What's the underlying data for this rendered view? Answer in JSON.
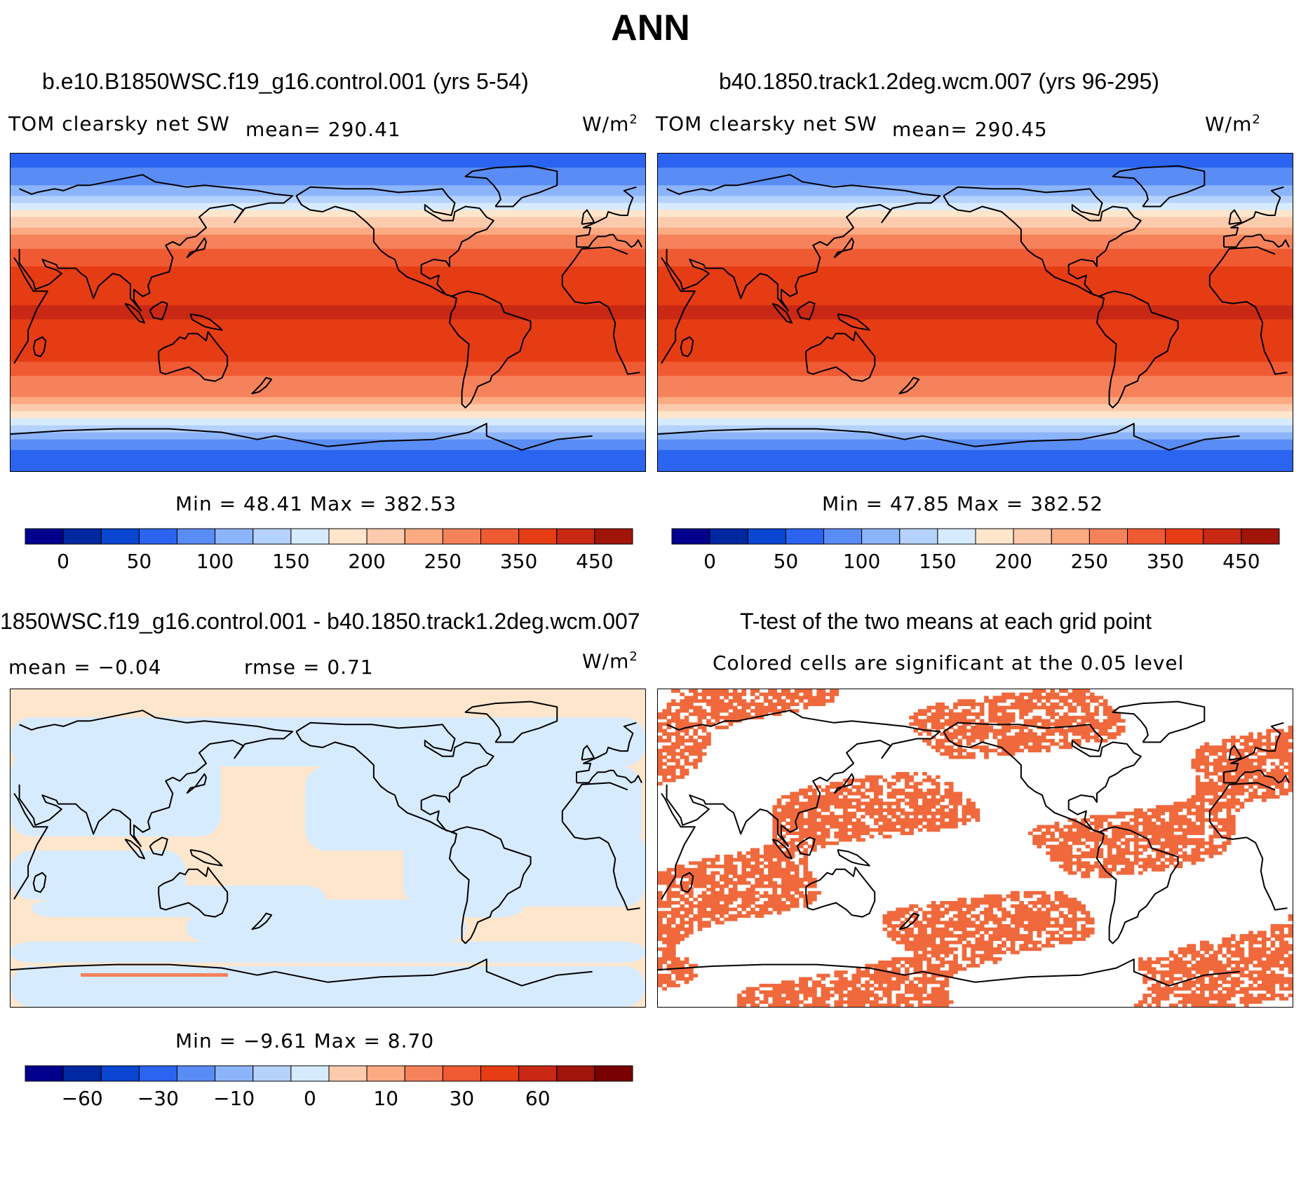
{
  "figure_title": "ANN",
  "colors": {
    "scale": [
      "#00008c",
      "#0028a0",
      "#0a46d2",
      "#2a64f0",
      "#5a8cf5",
      "#8cb4fa",
      "#b4d2fc",
      "#d7ebfe",
      "#fee6cc",
      "#fccaad",
      "#fcaa82",
      "#f5825a",
      "#f05a32",
      "#e63c14",
      "#c82814",
      "#a0140a",
      "#780000"
    ],
    "continent_line": "#000000",
    "significant": "#f0693c"
  },
  "panels": {
    "p1": {
      "title": "b.e10.B1850WSC.f19_g16.control.001 (yrs 5-54)",
      "variable": "TOM clearsky net SW",
      "mean_text": "mean= 290.41",
      "units": "W/m",
      "units_sup": "2",
      "minmax_text": "Min =   48.41 Max = 382.53"
    },
    "p2": {
      "title": "b40.1850.track1.2deg.wcm.007 (yrs 96-295)",
      "variable": "TOM clearsky net SW",
      "mean_text": "mean= 290.45",
      "units": "W/m",
      "units_sup": "2",
      "minmax_text": "Min =   47.85 Max = 382.52"
    },
    "p3": {
      "title": "1850WSC.f19_g16.control.001 - b40.1850.track1.2deg.wcm.007",
      "mean_text": "mean =   −0.04",
      "rmse_text": "rmse =    0.71",
      "units": "W/m",
      "units_sup": "2",
      "minmax_text": "Min =  −9.61 Max =    8.70"
    },
    "p4": {
      "title": "T-test of the two means at each grid point",
      "subtitle": "Colored cells are significant at the 0.05 level"
    }
  },
  "chart_data": [
    {
      "type": "heatmap",
      "title": "b.e10.B1850WSC.f19_g16.control.001 (yrs 5-54)",
      "variable": "TOM clearsky net SW",
      "units": "W/m^2",
      "mean": 290.41,
      "min": 48.41,
      "max": 382.53,
      "lat_range": [
        -90,
        90
      ],
      "lon_range": [
        30,
        390
      ],
      "colorbar_levels": [
        0,
        25,
        50,
        75,
        100,
        125,
        150,
        175,
        200,
        225,
        250,
        300,
        325,
        350,
        400,
        450
      ],
      "colorbar_ticks": [
        "0",
        "50",
        "100",
        "150",
        "200",
        "250",
        "350",
        "450"
      ],
      "zonal_profile": [
        [
          -90,
          60
        ],
        [
          -75,
          80
        ],
        [
          -65,
          140
        ],
        [
          -55,
          210
        ],
        [
          -45,
          265
        ],
        [
          -35,
          305
        ],
        [
          -25,
          330
        ],
        [
          -15,
          345
        ],
        [
          0,
          352
        ],
        [
          15,
          345
        ],
        [
          25,
          330
        ],
        [
          35,
          300
        ],
        [
          45,
          245
        ],
        [
          55,
          190
        ],
        [
          65,
          130
        ],
        [
          75,
          90
        ],
        [
          90,
          60
        ]
      ]
    },
    {
      "type": "heatmap",
      "title": "b40.1850.track1.2deg.wcm.007 (yrs 96-295)",
      "variable": "TOM clearsky net SW",
      "units": "W/m^2",
      "mean": 290.45,
      "min": 47.85,
      "max": 382.52,
      "lat_range": [
        -90,
        90
      ],
      "lon_range": [
        30,
        390
      ],
      "colorbar_levels": [
        0,
        25,
        50,
        75,
        100,
        125,
        150,
        175,
        200,
        225,
        250,
        300,
        325,
        350,
        400,
        450
      ],
      "colorbar_ticks": [
        "0",
        "50",
        "100",
        "150",
        "200",
        "250",
        "350",
        "450"
      ],
      "zonal_profile": [
        [
          -90,
          60
        ],
        [
          -75,
          80
        ],
        [
          -65,
          140
        ],
        [
          -55,
          210
        ],
        [
          -45,
          265
        ],
        [
          -35,
          305
        ],
        [
          -25,
          330
        ],
        [
          -15,
          345
        ],
        [
          0,
          352
        ],
        [
          15,
          345
        ],
        [
          25,
          330
        ],
        [
          35,
          300
        ],
        [
          45,
          245
        ],
        [
          55,
          190
        ],
        [
          65,
          130
        ],
        [
          75,
          90
        ],
        [
          90,
          60
        ]
      ]
    },
    {
      "type": "heatmap",
      "title": "1850WSC.f19_g16.control.001 - b40.1850.track1.2deg.wcm.007",
      "units": "W/m^2",
      "mean": -0.04,
      "rmse": 0.71,
      "min": -9.61,
      "max": 8.7,
      "lat_range": [
        -90,
        90
      ],
      "lon_range": [
        30,
        390
      ],
      "colorbar_levels": [
        -80,
        -60,
        -40,
        -30,
        -20,
        -10,
        -5,
        0,
        5,
        10,
        20,
        30,
        40,
        60,
        80
      ],
      "colorbar_ticks": [
        "−60",
        "−30",
        "−10",
        "0",
        "10",
        "30",
        "60"
      ]
    },
    {
      "type": "heatmap",
      "title": "T-test of the two means at each grid point",
      "subtitle": "Colored cells are significant at the 0.05 level",
      "significance_level": 0.05,
      "lat_range": [
        -90,
        90
      ],
      "lon_range": [
        30,
        390
      ]
    }
  ]
}
